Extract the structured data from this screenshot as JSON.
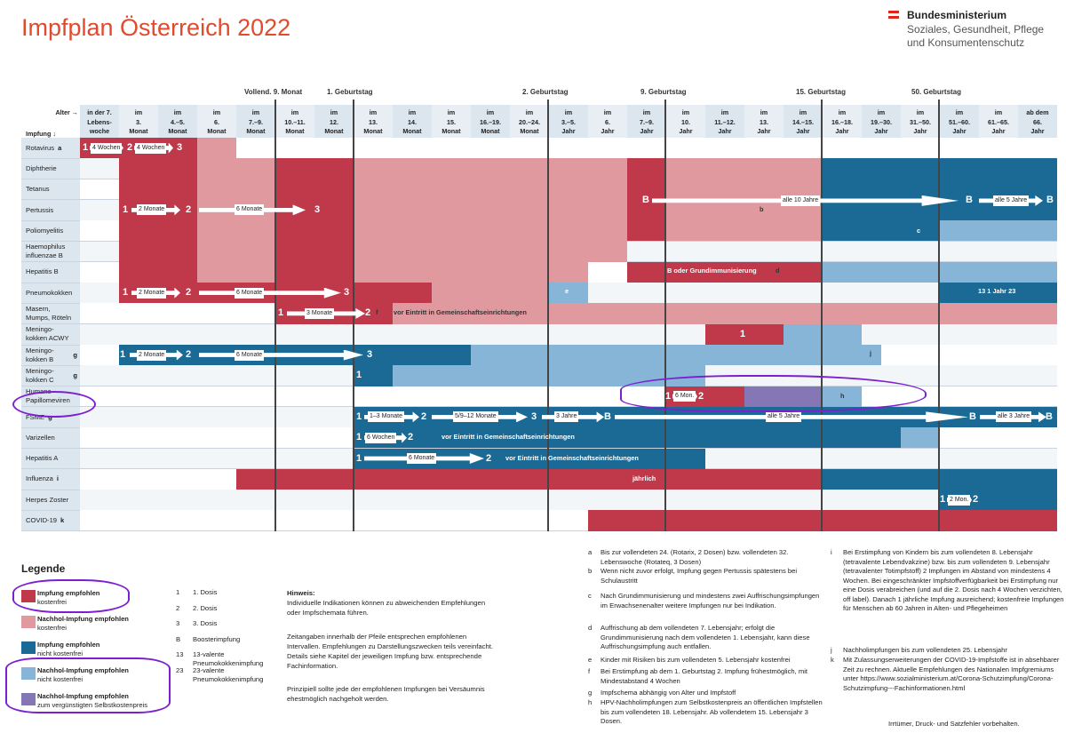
{
  "title": "Impfplan Österreich 2022",
  "ministry": {
    "line1": "Bundesministerium",
    "line2": "Soziales, Gesundheit, Pflege",
    "line3": "und Konsumentenschutz"
  },
  "colors": {
    "red": "#c0394b",
    "pink": "#e0999f",
    "blue": "#1b6a96",
    "lightblue": "#87b5d8",
    "purple": "#8577b5",
    "rowbg": "#dbe6ef"
  },
  "milestones": [
    "Vollend. 9. Monat",
    "1. Geburtstag",
    "2. Geburtstag",
    "9. Geburtstag",
    "15. Geburtstag",
    "50. Geburtstag"
  ],
  "age_axis_label": "Alter →",
  "vaccine_axis_label": "Impfung ↓",
  "columns": [
    {
      "l1": "in der 7.",
      "l2": "Lebens-",
      "l3": "woche"
    },
    {
      "l1": "im",
      "l2": "3.",
      "l3": "Monat"
    },
    {
      "l1": "im",
      "l2": "4.–5.",
      "l3": "Monat"
    },
    {
      "l1": "im",
      "l2": "6.",
      "l3": "Monat"
    },
    {
      "l1": "im",
      "l2": "7.–9.",
      "l3": "Monat"
    },
    {
      "l1": "im",
      "l2": "10.–11.",
      "l3": "Monat"
    },
    {
      "l1": "im",
      "l2": "12.",
      "l3": "Monat"
    },
    {
      "l1": "im",
      "l2": "13.",
      "l3": "Monat"
    },
    {
      "l1": "im",
      "l2": "14.",
      "l3": "Monat"
    },
    {
      "l1": "im",
      "l2": "15.",
      "l3": "Monat"
    },
    {
      "l1": "im",
      "l2": "16.–19.",
      "l3": "Monat"
    },
    {
      "l1": "im",
      "l2": "20.–24.",
      "l3": "Monat"
    },
    {
      "l1": "im",
      "l2": "3.–5.",
      "l3": "Jahr"
    },
    {
      "l1": "im",
      "l2": "6.",
      "l3": "Jahr"
    },
    {
      "l1": "im",
      "l2": "7.–9.",
      "l3": "Jahr"
    },
    {
      "l1": "im",
      "l2": "10.",
      "l3": "Jahr"
    },
    {
      "l1": "im",
      "l2": "11.–12.",
      "l3": "Jahr"
    },
    {
      "l1": "im",
      "l2": "13.",
      "l3": "Jahr"
    },
    {
      "l1": "im",
      "l2": "14.–15.",
      "l3": "Jahr"
    },
    {
      "l1": "im",
      "l2": "16.–18.",
      "l3": "Jahr"
    },
    {
      "l1": "im",
      "l2": "19.–30.",
      "l3": "Jahr"
    },
    {
      "l1": "im",
      "l2": "31.–50.",
      "l3": "Jahr"
    },
    {
      "l1": "im",
      "l2": "51.–60.",
      "l3": "Jahr"
    },
    {
      "l1": "im",
      "l2": "61.–65.",
      "l3": "Jahr"
    },
    {
      "l1": "ab dem",
      "l2": "66.",
      "l3": "Jahr"
    }
  ],
  "vaccines": [
    {
      "name": "Rotavirus",
      "sup": "a"
    },
    {
      "name": "Diphtherie",
      "sup": ""
    },
    {
      "name": "Tetanus",
      "sup": ""
    },
    {
      "name": "Pertussis",
      "sup": ""
    },
    {
      "name": "Poliomyelitis",
      "sup": ""
    },
    {
      "name": "Haemophilus influenzae B",
      "sup": ""
    },
    {
      "name": "Hepatitis B",
      "sup": ""
    },
    {
      "name": "Pneumokokken",
      "sup": ""
    },
    {
      "name": "Masern, Mumps, Röteln",
      "sup": ""
    },
    {
      "name": "Meningo-kokken ACWY",
      "sup": ""
    },
    {
      "name": "Meningo-kokken B",
      "sup": "g"
    },
    {
      "name": "Meningo-kokken C",
      "sup": "g"
    },
    {
      "name": "Humane Papillomeviren",
      "sup": ""
    },
    {
      "name": "FSME",
      "sup": "g"
    },
    {
      "name": "Varizellen",
      "sup": ""
    },
    {
      "name": "Hepatitis A",
      "sup": ""
    },
    {
      "name": "Influenza",
      "sup": "i"
    },
    {
      "name": "Herpes Zoster",
      "sup": ""
    },
    {
      "name": "COVID-19",
      "sup": "k"
    }
  ],
  "schedule_labels": {
    "rota_d1": "1",
    "rota_i1": "4 Wochen",
    "rota_d2": "2",
    "rota_i2": "4 Wochen",
    "rota_d3": "3",
    "six_d1": "1",
    "six_i1": "2 Monate",
    "six_d2": "2",
    "six_i2": "6 Monate",
    "six_d3": "3",
    "six_booster": "B",
    "six_interval_booster": "alle 10 Jahre",
    "six_booster2": "B",
    "six_interval_66": "alle 5 Jahre",
    "six_booster3": "B",
    "six_fn_b": "b",
    "six_fn_c": "c",
    "hepb_text": "B oder Grundimmunisierung",
    "hepb_fn": "d",
    "pneu_d1": "1",
    "pneu_i1": "2 Monate",
    "pneu_d2": "2",
    "pneu_i2": "6 Monate",
    "pneu_d3": "3",
    "pneu_fn_e": "e",
    "pneu_adult": "13 1 Jahr 23",
    "mmr_d1": "1",
    "mmr_i1": "3 Monate",
    "mmr_d2": "2",
    "mmr_fn": "f",
    "mmr_text": "vor Eintritt in Gemeinschaftseinrichtungen",
    "acwy_d1": "1",
    "menb_d1": "1",
    "menb_i1": "2 Monate",
    "menb_d2": "2",
    "menb_i2": "6 Monate",
    "menb_d3": "3",
    "menb_fn": "j",
    "menc_d1": "1",
    "hpv_d1": "1",
    "hpv_i1": "6 Mon.",
    "hpv_d2": "2",
    "hpv_fn": "h",
    "fsme_d1": "1",
    "fsme_i1": "1–3 Monate",
    "fsme_d2": "2",
    "fsme_i2": "5/9–12 Monate",
    "fsme_d3": "3",
    "fsme_i3": "3 Jahre",
    "fsme_b": "B",
    "fsme_i4": "alle 5 Jahre",
    "fsme_b2": "B",
    "fsme_i5": "alle 3 Jahre",
    "fsme_b3": "B",
    "var_d1": "1",
    "var_i1": "6 Wochen",
    "var_d2": "2",
    "var_text": "vor Eintritt in Gemeinschaftseinrichtungen",
    "hepa_d1": "1",
    "hepa_i1": "6 Monate",
    "hepa_d2": "2",
    "hepa_text": "vor Eintritt in Gemeinschaftseinrichtungen",
    "flu_text": "jährlich",
    "hz_d1": "1",
    "hz_i1": "2 Mon.",
    "hz_d2": "2"
  },
  "legend": {
    "title": "Legende",
    "items": [
      {
        "title": "Impfung empfohlen",
        "sub": "kostenfrei"
      },
      {
        "title": "Nachhol-Impfung empfohlen",
        "sub": "kostenfrei"
      },
      {
        "title": "Impfung empfohlen",
        "sub": "nicht kostenfrei"
      },
      {
        "title": "Nachhol-Impfung empfohlen",
        "sub": "nicht kostenfrei"
      },
      {
        "title": "Nachhol-Impfung empfohlen",
        "sub": "zum vergünstigten Selbstkostenpreis"
      }
    ],
    "doses": [
      {
        "k": "1",
        "v": "1. Dosis"
      },
      {
        "k": "2",
        "v": "2. Dosis"
      },
      {
        "k": "3",
        "v": "3. Dosis"
      },
      {
        "k": "B",
        "v": "Boosterimpfung"
      },
      {
        "k": "13",
        "v": "13-valente Pneumokokkenimpfung"
      },
      {
        "k": "23",
        "v": "23-valente Pneumokokkenimpfung"
      }
    ]
  },
  "hint": {
    "title": "Hinweis:",
    "p1": "Individuelle Indikationen können zu abweichenden Empfehlungen oder Impfschemata führen.",
    "p2": "Zeitangaben innerhalb der Pfeile entsprechen empfohlenen Intervallen. Empfehlungen zu Darstellungszwecken teils vereinfacht. Details siehe Kapitel der jeweiligen Impfung bzw. entsprechende Fachinformation.",
    "p3": "Prinzipiell sollte jede der empfohlenen Impfungen bei Versäumnis ehestmöglich nachgeholt werden."
  },
  "footnotes_left": [
    {
      "k": "a",
      "v": "Bis zur vollendeten 24. (Rotarix, 2 Dosen) bzw. vollendeten 32. Lebenswoche (Rotateq, 3 Dosen)"
    },
    {
      "k": "b",
      "v": "Wenn nicht zuvor erfolgt, Impfung gegen Pertussis spätestens bei Schulaustritt"
    },
    {
      "k": "c",
      "v": "Nach Grundimmunisierung und mindestens zwei Auffrischungsimpfungen im Erwachsenenalter weitere Impfungen nur bei Indikation."
    },
    {
      "k": "d",
      "v": "Auffrischung ab dem vollendeten 7. Lebensjahr; erfolgt die Grundimmunisierung nach dem vollendeten 1. Lebensjahr, kann diese Auffrischungsimpfung auch entfallen."
    },
    {
      "k": "e",
      "v": "Kinder mit Risiken bis zum vollendeten 5. Lebensjahr kostenfrei"
    },
    {
      "k": "f",
      "v": "Bei Erstimpfung ab dem 1. Geburtstag 2. Impfung frühestmöglich, mit Mindestabstand 4 Wochen"
    },
    {
      "k": "g",
      "v": "Impfschema abhängig von Alter und Impfstoff"
    },
    {
      "k": "h",
      "v": "HPV-Nachholimpfungen zum Selbstkostenpreis an öffentlichen Impfstellen bis zum vollendeten 18. Lebensjahr. Ab vollendetem 15. Lebensjahr 3 Dosen."
    }
  ],
  "footnotes_right": [
    {
      "k": "i",
      "v": "Bei Erstimpfung von Kindern bis zum vollendeten 8. Lebensjahr (tetravalente Lebendvakzine) bzw. bis zum vollendeten 9. Lebensjahr (tetravalenter Totimpfstoff) 2 Impfungen im Abstand von mindestens 4 Wochen. Bei eingeschränkter Impfstoffverfügbarkeit bei Erstimpfung nur eine Dosis verabreichen (und auf die 2. Dosis nach 4 Wochen verzichten, off label). Danach 1 jährliche Impfung ausreichend; kostenfreie Impfungen für Menschen ab 60 Jahren in Alten- und Pflegeheimen"
    },
    {
      "k": "j",
      "v": "Nachholimpfungen bis zum vollendeten 25. Lebensjahr"
    },
    {
      "k": "k",
      "v": "Mit Zulassungserweiterungen der COVID-19-Impfstoffe ist in absehbarer Zeit zu rechnen. Aktuelle Empfehlungen des Nationalen Impfgremiums unter https://www.sozialministerium.at/Corona-Schutzimpfung/Corona-Schutzimpfung---Fachinformationen.html"
    }
  ],
  "disclaimer": "Irrtümer, Druck- und Satzfehler vorbehalten."
}
